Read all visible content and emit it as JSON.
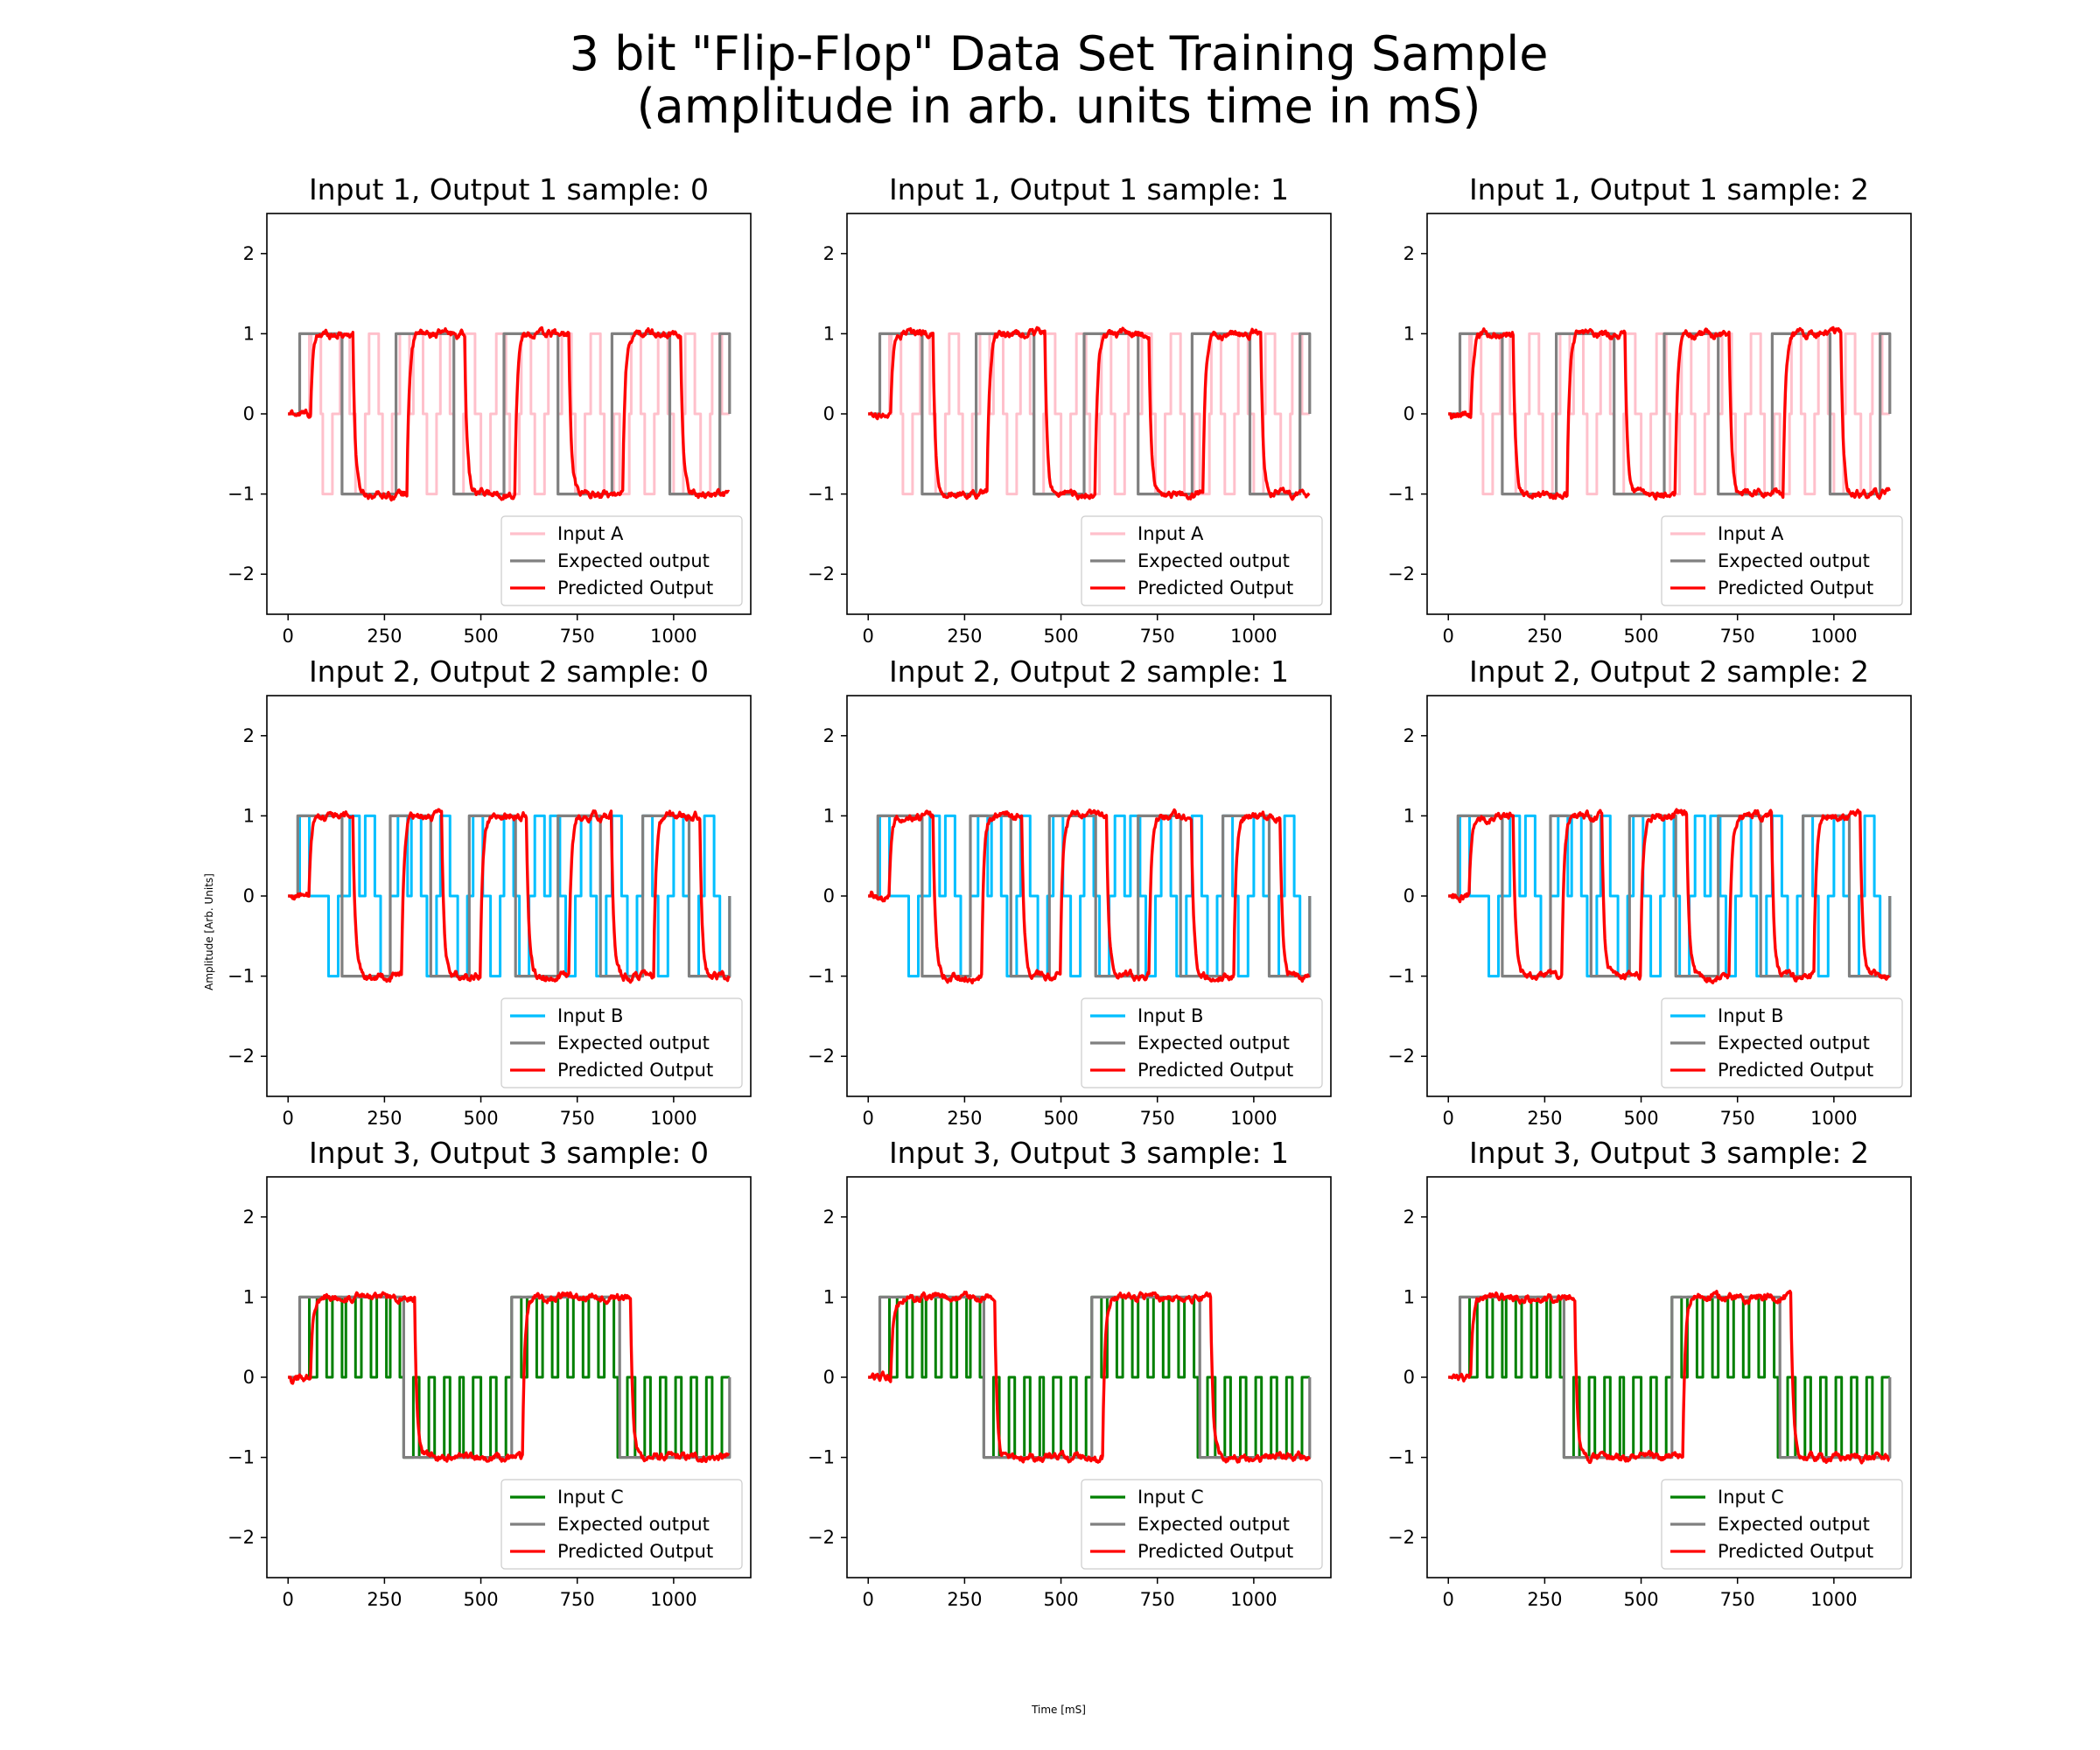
{
  "figure": {
    "title_line1": "3 bit \"Flip-Flop\" Data Set Training Sample",
    "title_line2": "(amplitude in arb. units time in mS)",
    "xlabel": "Time [mS]",
    "ylabel": "Amplitude [Arb. Units]"
  },
  "chart_data": {
    "type": "line",
    "grid": false,
    "xlim": [
      -55,
      1200
    ],
    "ylim": [
      -2.5,
      2.5
    ],
    "xticks": [
      "0",
      "250",
      "500",
      "750",
      "1000"
    ],
    "yticks": [
      "−2",
      "−1",
      "0",
      "1",
      "2"
    ],
    "legend_placement": "lower-right",
    "colors": {
      "Input A": "#ffc0cb",
      "Input B": "#00bfff",
      "Input C": "#008000",
      "Expected output": "#808080",
      "Predicted Output": "#ff0000"
    },
    "rows": [
      {
        "input_name": "Input A",
        "input_pulses": [
          [
            30,
            1
          ],
          [
            60,
            1
          ],
          [
            90,
            -1
          ],
          [
            135,
            1
          ],
          [
            175,
            -1
          ],
          [
            210,
            1
          ],
          [
            245,
            -1
          ],
          [
            290,
            1
          ],
          [
            325,
            1
          ],
          [
            360,
            -1
          ],
          [
            395,
            1
          ],
          [
            430,
            -1
          ],
          [
            460,
            1
          ],
          [
            500,
            -1
          ],
          [
            540,
            1
          ],
          [
            575,
            -1
          ],
          [
            605,
            1
          ],
          [
            640,
            -1
          ],
          [
            675,
            1
          ],
          [
            710,
            1
          ],
          [
            745,
            -1
          ],
          [
            785,
            1
          ],
          [
            820,
            -1
          ],
          [
            860,
            -1
          ],
          [
            890,
            1
          ],
          [
            925,
            -1
          ],
          [
            960,
            1
          ],
          [
            1000,
            -1
          ],
          [
            1030,
            1
          ],
          [
            1070,
            -1
          ],
          [
            1100,
            1
          ]
        ],
        "expected_transitions": [
          [
            0,
            0
          ],
          [
            30,
            1
          ],
          [
            140,
            -1
          ],
          [
            280,
            1
          ],
          [
            430,
            -1
          ],
          [
            560,
            1
          ],
          [
            700,
            -1
          ],
          [
            840,
            1
          ],
          [
            990,
            -1
          ],
          [
            1120,
            1
          ],
          [
            1145,
            0
          ]
        ],
        "panels": [
          {
            "title": "Input 1, Output 1 sample: 0",
            "legend": [
              "Input A",
              "Expected output",
              "Predicted Output"
            ]
          },
          {
            "title": "Input 1, Output 1 sample: 1",
            "legend": [
              "Input A",
              "Expected output",
              "Predicted Output"
            ]
          },
          {
            "title": "Input 1, Output 1 sample: 2",
            "legend": [
              "Input A",
              "Expected output",
              "Predicted Output"
            ]
          }
        ]
      },
      {
        "input_name": "Input B",
        "input_pulses": [
          [
            30,
            1
          ],
          [
            105,
            -1
          ],
          [
            160,
            1
          ],
          [
            200,
            1
          ],
          [
            240,
            -1
          ],
          [
            285,
            1
          ],
          [
            320,
            1
          ],
          [
            360,
            -1
          ],
          [
            395,
            1
          ],
          [
            440,
            -1
          ],
          [
            480,
            1
          ],
          [
            525,
            -1
          ],
          [
            560,
            1
          ],
          [
            600,
            -1
          ],
          [
            640,
            1
          ],
          [
            680,
            1
          ],
          [
            720,
            -1
          ],
          [
            760,
            1
          ],
          [
            800,
            -1
          ],
          [
            840,
            1
          ],
          [
            880,
            -1
          ],
          [
            920,
            1
          ],
          [
            960,
            -1
          ],
          [
            1000,
            1
          ],
          [
            1040,
            -1
          ],
          [
            1080,
            1
          ],
          [
            1120,
            -1
          ]
        ],
        "expected_transitions": [
          [
            0,
            0
          ],
          [
            25,
            1
          ],
          [
            140,
            -1
          ],
          [
            265,
            1
          ],
          [
            370,
            -1
          ],
          [
            470,
            1
          ],
          [
            590,
            -1
          ],
          [
            700,
            1
          ],
          [
            810,
            -1
          ],
          [
            920,
            1
          ],
          [
            1040,
            -1
          ],
          [
            1145,
            0
          ]
        ],
        "panels": [
          {
            "title": "Input 2, Output 2 sample: 0",
            "legend": [
              "Input B",
              "Expected output",
              "Predicted Output"
            ]
          },
          {
            "title": "Input 2, Output 2 sample: 1",
            "legend": [
              "Input B",
              "Expected output",
              "Predicted Output"
            ]
          },
          {
            "title": "Input 2, Output 2 sample: 2",
            "legend": [
              "Input B",
              "Expected output",
              "Predicted Output"
            ]
          }
        ]
      },
      {
        "input_name": "Input C",
        "input_pulses": [
          [
            30,
            1
          ],
          [
            75,
            1
          ],
          [
            115,
            1
          ],
          [
            150,
            1
          ],
          [
            190,
            1
          ],
          [
            230,
            1
          ],
          [
            265,
            1
          ],
          [
            300,
            -1
          ],
          [
            340,
            -1
          ],
          [
            380,
            -1
          ],
          [
            420,
            -1
          ],
          [
            455,
            -1
          ],
          [
            500,
            -1
          ],
          [
            540,
            -1
          ],
          [
            580,
            1
          ],
          [
            620,
            1
          ],
          [
            660,
            1
          ],
          [
            700,
            1
          ],
          [
            740,
            1
          ],
          [
            780,
            1
          ],
          [
            820,
            1
          ],
          [
            855,
            -1
          ],
          [
            900,
            -1
          ],
          [
            940,
            -1
          ],
          [
            980,
            -1
          ],
          [
            1020,
            -1
          ],
          [
            1060,
            -1
          ],
          [
            1100,
            -1
          ]
        ],
        "expected_transitions": [
          [
            0,
            0
          ],
          [
            30,
            1
          ],
          [
            300,
            -1
          ],
          [
            580,
            1
          ],
          [
            860,
            -1
          ],
          [
            1145,
            0
          ]
        ],
        "panels": [
          {
            "title": "Input 3, Output 3 sample: 0",
            "legend": [
              "Input C",
              "Expected output",
              "Predicted Output"
            ]
          },
          {
            "title": "Input 3, Output 3 sample: 1",
            "legend": [
              "Input C",
              "Expected output",
              "Predicted Output"
            ]
          },
          {
            "title": "Input 3, Output 3 sample: 2",
            "legend": [
              "Input C",
              "Expected output",
              "Predicted Output"
            ]
          }
        ]
      }
    ],
    "pulse_width": 25,
    "predicted": {
      "lag": 30,
      "time_constant": 7,
      "noise": 0.07,
      "x_end": 1145,
      "start": 30
    }
  }
}
